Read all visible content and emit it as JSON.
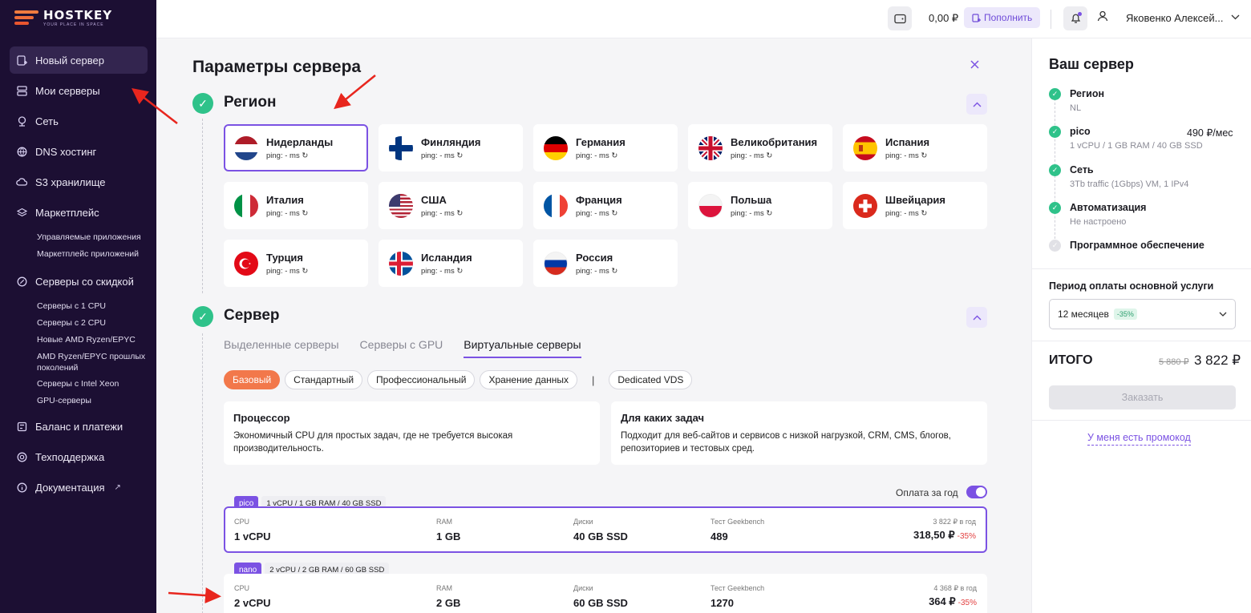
{
  "brand": {
    "name": "HOSTKEY",
    "tagline": "YOUR PLACE IN SPACE"
  },
  "sidebar": {
    "items": [
      {
        "label": "Новый сервер",
        "icon": "new-server-icon"
      },
      {
        "label": "Мои серверы",
        "icon": "servers-icon"
      },
      {
        "label": "Сеть",
        "icon": "network-icon"
      },
      {
        "label": "DNS хостинг",
        "icon": "dns-icon"
      },
      {
        "label": "S3 хранилище",
        "icon": "cloud-icon"
      },
      {
        "label": "Маркетплейс",
        "icon": "layers-icon"
      },
      {
        "label": "Серверы со скидкой",
        "icon": "discount-icon"
      },
      {
        "label": "Баланс и платежи",
        "icon": "wallet-icon"
      },
      {
        "label": "Техподдержка",
        "icon": "support-icon"
      },
      {
        "label": "Документация",
        "icon": "info-icon"
      }
    ],
    "marketplace_sub": [
      "Управляемые приложения",
      "Маркетплейс приложений"
    ],
    "discount_sub": [
      "Серверы с 1 CPU",
      "Серверы с 2 CPU",
      "Новые AMD Ryzen/EPYC",
      "AMD Ryzen/EPYC прошлых поколений",
      "Серверы с Intel Xeon",
      "GPU-серверы"
    ]
  },
  "topbar": {
    "balance": "0,00 ₽",
    "topup_label": "Пополнить",
    "user_name": "Яковенко Алексей..."
  },
  "main": {
    "title": "Параметры сервера",
    "region_section": "Регион",
    "regions": [
      {
        "name": "Нидерланды",
        "ping": "ping: - ms",
        "flag": "nl"
      },
      {
        "name": "Финляндия",
        "ping": "ping: - ms",
        "flag": "fi"
      },
      {
        "name": "Германия",
        "ping": "ping: - ms",
        "flag": "de"
      },
      {
        "name": "Великобритания",
        "ping": "ping: - ms",
        "flag": "gb"
      },
      {
        "name": "Испания",
        "ping": "ping: - ms",
        "flag": "es"
      },
      {
        "name": "Италия",
        "ping": "ping: - ms",
        "flag": "it"
      },
      {
        "name": "США",
        "ping": "ping: - ms",
        "flag": "us"
      },
      {
        "name": "Франция",
        "ping": "ping: - ms",
        "flag": "fr"
      },
      {
        "name": "Польша",
        "ping": "ping: - ms",
        "flag": "pl"
      },
      {
        "name": "Швейцария",
        "ping": "ping: - ms",
        "flag": "ch"
      },
      {
        "name": "Турция",
        "ping": "ping: - ms",
        "flag": "tr"
      },
      {
        "name": "Исландия",
        "ping": "ping: - ms",
        "flag": "is"
      },
      {
        "name": "Россия",
        "ping": "ping: - ms",
        "flag": "ru"
      }
    ],
    "server_section": "Сервер",
    "tabs": [
      "Выделенные серверы",
      "Серверы с GPU",
      "Виртуальные серверы"
    ],
    "chips": [
      "Базовый",
      "Стандартный",
      "Профессиональный",
      "Хранение данных",
      "|",
      "Dedicated VDS"
    ],
    "cpu_card": {
      "title": "Процессор",
      "text": "Экономичный CPU для простых задач, где не требуется высокая производительность."
    },
    "tasks_card": {
      "title": "Для каких задач",
      "text": "Подходит для веб-сайтов и сервисов с низкой нагрузкой, CRM, CMS, блогов, репозиториев и тестовых сред."
    },
    "yearly_label": "Оплата за год",
    "plans": [
      {
        "badge": "pico",
        "desc": "1 vCPU / 1 GB RAM / 40 GB SSD",
        "cpu_label": "CPU",
        "cpu": "1 vCPU",
        "ram_label": "RAM",
        "ram": "1 GB",
        "disk_label": "Диски",
        "disk": "40 GB SSD",
        "bench_label": "Тест Geekbench",
        "bench": "489",
        "year_price": "3 822 ₽ в год",
        "price": "318,50 ₽",
        "discount": "-35%"
      },
      {
        "badge": "nano",
        "desc": "2 vCPU / 2 GB RAM / 60 GB SSD",
        "cpu_label": "CPU",
        "cpu": "2 vCPU",
        "ram_label": "RAM",
        "ram": "2 GB",
        "disk_label": "Диски",
        "disk": "60 GB SSD",
        "bench_label": "Тест Geekbench",
        "bench": "1270",
        "year_price": "4 368 ₽ в год",
        "price": "364 ₽",
        "discount": "-35%"
      }
    ]
  },
  "summary": {
    "title": "Ваш сервер",
    "steps": [
      {
        "name": "Регион",
        "detail": "NL"
      },
      {
        "name": "pico",
        "detail": "1 vCPU / 1 GB RAM / 40 GB SSD",
        "price": "490 ₽/мес"
      },
      {
        "name": "Сеть",
        "detail": "3Tb traffic (1Gbps) VM, 1 IPv4"
      },
      {
        "name": "Автоматизация",
        "detail": "Не настроено"
      },
      {
        "name": "Программное обеспечение"
      }
    ],
    "period_label": "Период оплаты основной услуги",
    "period_value": "12 месяцев",
    "period_discount": "-35%",
    "total_label": "ИТОГО",
    "total_old": "5 880 ₽",
    "total_new": "3 822 ₽",
    "order_label": "Заказать",
    "promo_label": "У меня есть промокод"
  },
  "colors": {
    "accent": "#7b52e3",
    "success": "#2fc28a",
    "sidebar": "#1c0f33",
    "chip_active": "#f2784b",
    "annotation": "#e8261e"
  }
}
